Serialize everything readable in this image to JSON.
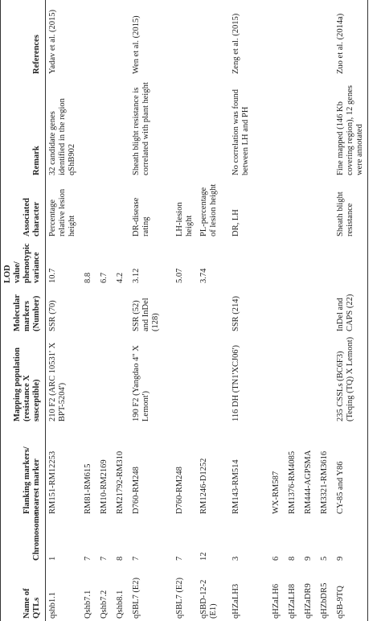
{
  "table": {
    "headers": [
      "Name of QTLs",
      "Chromosome",
      "Flanking markers/ nearest marker",
      "Mapping population (resistance X susceptible)",
      "Molecular markers (Number)",
      "LOD value/ phenotypic variance",
      "Associated character",
      "Remark",
      "References"
    ],
    "rows": [
      [
        "qshb1.1",
        "1",
        "RM151-RM12253",
        "210 F2 (ARC 10531' X BPT-5204')",
        "SSR (70)",
        "10.7",
        "Percentage relative lesion height",
        "32 candidate genes identified in the region qShB902",
        "Yadav et al. (2015)"
      ],
      [
        "Qshb7.1",
        "7",
        "RM81-RM615",
        null,
        null,
        "8.8",
        null,
        null,
        null
      ],
      [
        "Qshb7.2",
        "7",
        "RM10-RM2169",
        null,
        null,
        "6.7",
        null,
        null,
        null
      ],
      [
        "Qshb8.1",
        "8",
        "RM21792-RM310",
        null,
        null,
        "4.2",
        null,
        null,
        null
      ],
      [
        "qSBL7 (E2)",
        "7",
        "D760-RM248",
        "190 F2 (Yangdao 4\" X Lemont')",
        "SSR (52) and InDel (128)",
        "3.12",
        "DR-disease rating",
        "Sheath blight resistance is correlated with plant height",
        "Wen et al. (2015)"
      ],
      [
        "qSBL7 (E2)",
        "7",
        "D760-RM248",
        null,
        null,
        "5.07",
        "LH-lesion height",
        null,
        null
      ],
      [
        "qSBD-12-2 (E1)",
        "12",
        "RM1246-D1252",
        null,
        null,
        "3.74",
        "PL-percentage of lesion height",
        null,
        null
      ],
      [
        "qHZaLH3",
        "3",
        "RM143-RM514",
        "116 DH (TN1'XCJ06')",
        "SSR (214)",
        null,
        "DR, LH",
        "No correlation was found between LH and PH",
        "Zeng et al. (2015)"
      ],
      [
        "qHZaLH6",
        "6",
        "WX-RM587",
        null,
        null,
        null,
        null,
        null,
        null
      ],
      [
        "qHZaLH8",
        "8",
        "RM1376-RM4085",
        null,
        null,
        null,
        null,
        null,
        null
      ],
      [
        "qHZaDR9",
        "9",
        "RM444-AGPSMA",
        null,
        null,
        null,
        null,
        null,
        null
      ],
      [
        "qHZbDR5",
        "5",
        "RM3321-RM3616",
        null,
        null,
        null,
        null,
        null,
        null
      ],
      [
        "qSB-9TQ",
        "9",
        "CY-85 and Y86",
        "235 CSSLs (BC6F3) (Teqing (TQ) X Lemont)",
        "InDel and CAPS (22)",
        null,
        "Sheath blight resistance",
        "Fine mapped (146 Kb covering region), 12 genes were annotated",
        "Zuo et al. (2014a)"
      ]
    ]
  }
}
